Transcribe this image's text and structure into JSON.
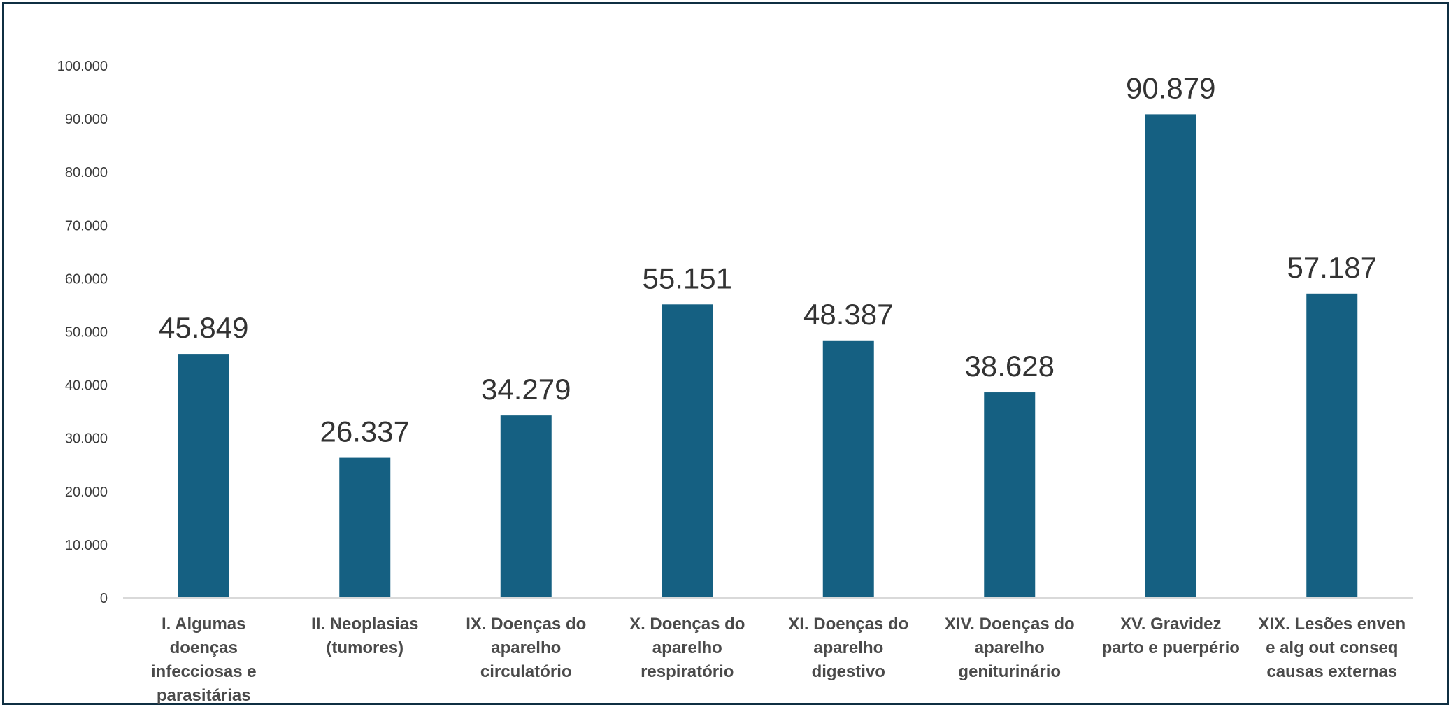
{
  "chart_data": {
    "type": "bar",
    "categories": [
      "I. Algumas doenças infecciosas e parasitárias",
      "II. Neoplasias (tumores)",
      "IX. Doenças do aparelho circulatório",
      "X. Doenças do aparelho respiratório",
      "XI. Doenças do aparelho digestivo",
      "XIV. Doenças do aparelho geniturinário",
      "XV. Gravidez parto e puerpério",
      "XIX. Lesões enven e alg out conseq causas externas"
    ],
    "category_lines": [
      [
        "I. Algumas",
        "doenças",
        "infecciosas e",
        "parasitárias"
      ],
      [
        "II. Neoplasias",
        "(tumores)"
      ],
      [
        "IX. Doenças do",
        "aparelho",
        "circulatório"
      ],
      [
        "X. Doenças do",
        "aparelho",
        "respiratório"
      ],
      [
        "XI. Doenças do",
        "aparelho",
        "digestivo"
      ],
      [
        "XIV. Doenças do",
        "aparelho",
        "geniturinário"
      ],
      [
        "XV. Gravidez",
        "parto e puerpério"
      ],
      [
        "XIX. Lesões enven",
        "e alg out conseq",
        "causas externas"
      ]
    ],
    "values": [
      45849,
      26337,
      34279,
      55151,
      48387,
      38628,
      90879,
      57187
    ],
    "data_labels": [
      "45.849",
      "26.337",
      "34.279",
      "55.151",
      "48.387",
      "38.628",
      "90.879",
      "57.187"
    ],
    "yticks": [
      {
        "value": 0,
        "label": "0"
      },
      {
        "value": 10000,
        "label": "10.000"
      },
      {
        "value": 20000,
        "label": "20.000"
      },
      {
        "value": 30000,
        "label": "30.000"
      },
      {
        "value": 40000,
        "label": "40.000"
      },
      {
        "value": 50000,
        "label": "50.000"
      },
      {
        "value": 60000,
        "label": "60.000"
      },
      {
        "value": 70000,
        "label": "70.000"
      },
      {
        "value": 80000,
        "label": "80.000"
      },
      {
        "value": 90000,
        "label": "90.000"
      },
      {
        "value": 100000,
        "label": "100.000"
      }
    ],
    "ylim": [
      0,
      100000
    ],
    "grid": false,
    "legend": "none",
    "bar_color": "#156082",
    "axis_color": "#d9d9d9",
    "frame_color": "#0f2f42"
  }
}
